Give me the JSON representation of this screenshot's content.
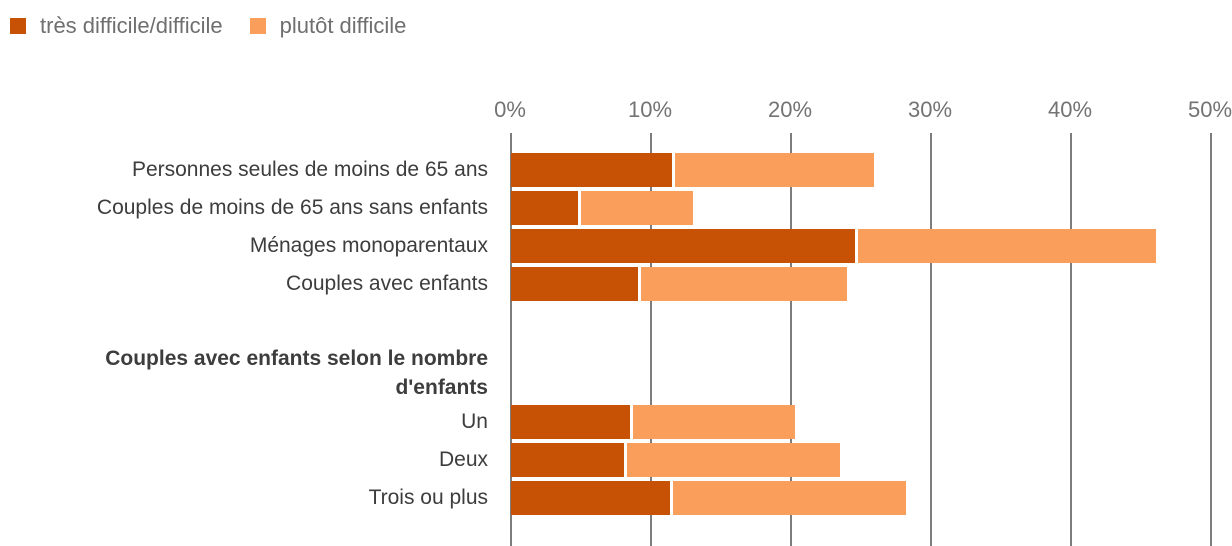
{
  "legend": {
    "items": [
      {
        "label": "très difficile/difficile",
        "color": "#c75206"
      },
      {
        "label": "plutôt difficile",
        "color": "#f99f5b"
      }
    ]
  },
  "chart_data": {
    "type": "bar",
    "orientation": "horizontal",
    "stacked": true,
    "unit": "%",
    "xlim": [
      0,
      50
    ],
    "x_ticks": [
      "0%",
      "10%",
      "20%",
      "30%",
      "40%",
      "50%"
    ],
    "grid": true,
    "legend_position": "top-left",
    "categories": [
      "Personnes seules de moins de 65 ans",
      "Couples de moins de 65 ans sans enfants",
      "Ménages monoparentaux",
      "Couples avec enfants",
      "Un",
      "Deux",
      "Trois ou plus"
    ],
    "group_header": {
      "after_category_index": 3,
      "lines": [
        "Couples avec enfants selon le nombre",
        "d'enfants"
      ]
    },
    "series": [
      {
        "name": "très difficile/difficile",
        "color": "#c75206",
        "values": [
          11.7,
          5.0,
          24.8,
          9.3,
          8.7,
          8.3,
          11.6
        ]
      },
      {
        "name": "plutôt difficile",
        "color": "#f99f5b",
        "values": [
          14.2,
          8.0,
          21.3,
          14.7,
          11.6,
          15.2,
          16.6
        ]
      }
    ],
    "totals": [
      25.9,
      13.0,
      46.1,
      24.0,
      20.3,
      23.5,
      28.2
    ]
  }
}
